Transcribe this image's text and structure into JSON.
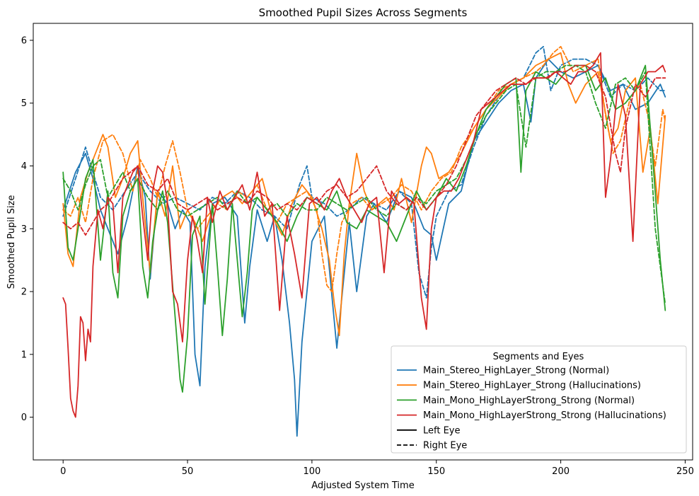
{
  "chart_data": {
    "type": "line",
    "title": "Smoothed Pupil Sizes Across Segments",
    "xlabel": "Adjusted System Time",
    "ylabel": "Smoothed Pupil Size",
    "xlim": [
      -12,
      253
    ],
    "ylim": [
      -0.68,
      6.27
    ],
    "xticks": [
      0,
      50,
      100,
      150,
      200,
      250
    ],
    "yticks": [
      0,
      1,
      2,
      3,
      4,
      5,
      6
    ],
    "grid": false,
    "legend": {
      "title": "Segments and Eyes",
      "placement": "lower-right",
      "entries": [
        {
          "label": "Main_Stereo_HighLayer_Strong (Normal)",
          "color": "#1f77b4",
          "style": "solid"
        },
        {
          "label": "Main_Stereo_HighLayer_Strong (Hallucinations)",
          "color": "#ff7f0e",
          "style": "solid"
        },
        {
          "label": "Main_Mono_HighLayerStrong_Strong (Normal)",
          "color": "#2ca02c",
          "style": "solid"
        },
        {
          "label": "Main_Mono_HighLayerStrong_Strong (Hallucinations)",
          "color": "#d62728",
          "style": "solid"
        },
        {
          "label": "Left Eye",
          "color": "#000000",
          "style": "solid"
        },
        {
          "label": "Right Eye",
          "color": "#000000",
          "style": "dashed"
        }
      ]
    },
    "series": [
      {
        "segment": "Main_Stereo_HighLayer_Strong (Normal)",
        "eye": "Left",
        "color": "#1f77b4",
        "dash": false,
        "x": [
          0,
          5,
          9,
          12,
          15,
          18,
          22,
          26,
          30,
          33,
          35,
          38,
          42,
          45,
          48,
          51,
          53,
          55,
          57,
          60,
          65,
          70,
          73,
          75,
          78,
          82,
          85,
          88,
          91,
          93,
          94,
          96,
          100,
          105,
          110,
          115,
          118,
          122,
          125,
          130,
          135,
          140,
          145,
          148,
          150,
          155,
          160,
          165,
          170,
          175,
          180,
          185,
          188,
          190,
          195,
          200,
          205,
          210,
          215,
          220,
          225,
          230,
          235,
          240,
          242
        ],
        "y": [
          3.3,
          3.9,
          4.2,
          3.8,
          3.3,
          3.0,
          2.6,
          3.2,
          4.0,
          3.5,
          2.2,
          3.6,
          3.4,
          3.0,
          3.3,
          3.1,
          1.0,
          0.5,
          2.4,
          3.4,
          3.5,
          3.2,
          1.5,
          2.4,
          3.3,
          2.8,
          3.2,
          2.5,
          1.5,
          0.6,
          -0.3,
          1.2,
          2.8,
          3.2,
          1.1,
          3.1,
          2.0,
          3.2,
          3.4,
          3.1,
          3.6,
          3.5,
          3.0,
          2.9,
          2.5,
          3.4,
          3.6,
          4.4,
          4.7,
          5.0,
          5.2,
          5.3,
          4.7,
          5.4,
          5.7,
          5.5,
          5.4,
          5.5,
          5.6,
          5.2,
          5.3,
          4.9,
          5.0,
          5.3,
          5.1
        ]
      },
      {
        "segment": "Main_Stereo_HighLayer_Strong (Normal)",
        "eye": "Right",
        "color": "#1f77b4",
        "dash": true,
        "x": [
          0,
          5,
          9,
          12,
          15,
          20,
          25,
          30,
          35,
          40,
          45,
          50,
          55,
          60,
          65,
          70,
          75,
          80,
          85,
          90,
          95,
          98,
          100,
          105,
          110,
          115,
          120,
          125,
          130,
          135,
          140,
          143,
          146,
          148,
          150,
          155,
          160,
          165,
          170,
          175,
          180,
          185,
          190,
          193,
          196,
          200,
          205,
          210,
          215,
          220,
          225,
          230,
          235,
          240,
          242
        ],
        "y": [
          3.2,
          3.8,
          4.3,
          3.9,
          3.5,
          3.3,
          3.6,
          3.9,
          3.6,
          3.4,
          3.5,
          3.4,
          3.3,
          3.5,
          3.4,
          3.6,
          3.5,
          3.3,
          3.2,
          3.0,
          3.7,
          4.0,
          3.5,
          3.4,
          3.2,
          3.3,
          3.5,
          3.4,
          3.3,
          3.6,
          3.4,
          2.3,
          1.9,
          2.7,
          3.2,
          3.6,
          3.7,
          4.3,
          4.8,
          5.1,
          5.3,
          5.4,
          5.8,
          5.9,
          5.2,
          5.6,
          5.7,
          5.7,
          5.6,
          5.1,
          5.3,
          5.2,
          5.4,
          5.2,
          5.2
        ]
      },
      {
        "segment": "Main_Stereo_HighLayer_Strong (Hallucinations)",
        "eye": "Left",
        "color": "#ff7f0e",
        "dash": false,
        "x": [
          0,
          2,
          4,
          7,
          10,
          13,
          16,
          18,
          21,
          24,
          27,
          30,
          32,
          35,
          38,
          41,
          44,
          47,
          50,
          53,
          56,
          60,
          64,
          68,
          72,
          76,
          80,
          84,
          88,
          92,
          96,
          100,
          104,
          107,
          109,
          111,
          113,
          115,
          118,
          121,
          124,
          127,
          130,
          133,
          136,
          140,
          144,
          146,
          148,
          151,
          155,
          160,
          165,
          170,
          175,
          180,
          185,
          190,
          195,
          200,
          203,
          206,
          210,
          215,
          220,
          223,
          226,
          230,
          233,
          236,
          239,
          242
        ],
        "y": [
          3.4,
          2.6,
          2.4,
          3.5,
          3.9,
          4.2,
          4.5,
          4.3,
          3.5,
          3.8,
          4.2,
          4.4,
          3.5,
          2.3,
          3.6,
          3.2,
          4.0,
          3.0,
          3.3,
          3.1,
          2.8,
          3.3,
          3.5,
          3.6,
          3.4,
          3.6,
          3.8,
          3.2,
          2.9,
          3.4,
          3.7,
          3.5,
          3.0,
          2.5,
          1.8,
          1.3,
          2.6,
          3.4,
          4.2,
          3.6,
          3.3,
          3.4,
          3.5,
          3.3,
          3.8,
          3.1,
          4.0,
          4.3,
          4.2,
          3.8,
          3.9,
          4.2,
          4.6,
          4.9,
          5.1,
          5.3,
          5.4,
          5.6,
          5.7,
          5.8,
          5.3,
          5.0,
          5.3,
          5.5,
          4.4,
          4.6,
          5.2,
          5.4,
          3.9,
          4.6,
          3.4,
          4.8
        ]
      },
      {
        "segment": "Main_Stereo_HighLayer_Strong (Hallucinations)",
        "eye": "Right",
        "color": "#ff7f0e",
        "dash": true,
        "x": [
          0,
          3,
          6,
          9,
          12,
          16,
          20,
          24,
          28,
          31,
          35,
          38,
          41,
          44,
          47,
          50,
          54,
          58,
          62,
          66,
          70,
          74,
          78,
          82,
          86,
          90,
          94,
          98,
          102,
          104,
          106,
          108,
          110,
          112,
          116,
          120,
          124,
          128,
          132,
          136,
          140,
          144,
          148,
          152,
          156,
          160,
          165,
          170,
          175,
          180,
          185,
          190,
          193,
          197,
          200,
          205,
          210,
          215,
          218,
          221,
          224,
          228,
          232,
          235,
          238,
          241,
          242
        ],
        "y": [
          3.3,
          3.2,
          3.5,
          3.1,
          3.8,
          4.4,
          4.5,
          4.2,
          3.6,
          4.1,
          3.8,
          3.5,
          4.0,
          4.4,
          3.9,
          3.3,
          3.0,
          3.2,
          3.4,
          3.3,
          3.6,
          3.5,
          3.7,
          3.3,
          3.1,
          3.4,
          3.5,
          3.6,
          3.3,
          2.6,
          2.1,
          2.0,
          2.6,
          3.1,
          3.4,
          3.5,
          3.3,
          3.4,
          3.5,
          3.7,
          3.6,
          3.3,
          3.6,
          3.8,
          3.9,
          4.3,
          4.6,
          4.9,
          5.2,
          5.3,
          5.4,
          5.5,
          5.6,
          5.8,
          5.9,
          5.5,
          5.6,
          5.7,
          4.8,
          4.2,
          4.4,
          5.1,
          5.3,
          4.8,
          4.0,
          4.9,
          4.7
        ]
      },
      {
        "segment": "Main_Mono_HighLayerStrong_Strong (Normal)",
        "eye": "Left",
        "color": "#2ca02c",
        "dash": false,
        "x": [
          0,
          2,
          4,
          6,
          9,
          12,
          15,
          18,
          20,
          22,
          24,
          27,
          30,
          32,
          34,
          36,
          38,
          40,
          42,
          45,
          47,
          48,
          50,
          52,
          55,
          57,
          60,
          62,
          64,
          66,
          68,
          70,
          72,
          74,
          76,
          78,
          82,
          86,
          90,
          94,
          98,
          102,
          106,
          110,
          114,
          118,
          122,
          126,
          130,
          134,
          138,
          142,
          146,
          150,
          154,
          158,
          162,
          166,
          170,
          174,
          178,
          182,
          184,
          186,
          190,
          194,
          198,
          202,
          206,
          210,
          214,
          218,
          222,
          226,
          230,
          234,
          237,
          240,
          242
        ],
        "y": [
          3.9,
          2.7,
          2.5,
          3.0,
          3.8,
          4.1,
          2.5,
          3.6,
          2.3,
          1.9,
          3.2,
          3.6,
          3.8,
          2.4,
          1.9,
          2.8,
          3.3,
          3.6,
          3.1,
          1.6,
          0.6,
          0.4,
          1.3,
          2.9,
          3.2,
          1.8,
          3.4,
          2.4,
          1.3,
          2.2,
          3.4,
          2.5,
          1.6,
          2.3,
          3.3,
          3.5,
          3.3,
          3.1,
          2.8,
          3.2,
          3.5,
          3.4,
          3.3,
          3.6,
          3.1,
          3.0,
          3.3,
          3.2,
          3.1,
          2.8,
          3.2,
          3.6,
          3.3,
          3.5,
          3.8,
          3.6,
          4.0,
          4.5,
          4.9,
          5.1,
          5.3,
          5.4,
          3.9,
          5.2,
          5.5,
          5.4,
          5.3,
          5.5,
          5.6,
          5.6,
          5.2,
          5.4,
          4.9,
          5.0,
          5.2,
          5.6,
          4.1,
          2.5,
          1.7
        ]
      },
      {
        "segment": "Main_Mono_HighLayerStrong_Strong (Normal)",
        "eye": "Right",
        "color": "#2ca02c",
        "dash": true,
        "x": [
          0,
          3,
          6,
          9,
          12,
          15,
          18,
          21,
          24,
          27,
          30,
          34,
          38,
          42,
          46,
          50,
          54,
          58,
          62,
          66,
          70,
          74,
          78,
          82,
          86,
          90,
          94,
          98,
          102,
          106,
          110,
          114,
          118,
          122,
          126,
          130,
          134,
          138,
          142,
          146,
          150,
          154,
          158,
          162,
          166,
          170,
          174,
          178,
          182,
          186,
          190,
          194,
          198,
          202,
          206,
          210,
          214,
          218,
          222,
          226,
          230,
          234,
          238,
          242
        ],
        "y": [
          3.8,
          3.6,
          3.3,
          3.7,
          4.0,
          4.1,
          3.5,
          3.7,
          3.9,
          3.6,
          3.8,
          3.5,
          3.3,
          3.6,
          3.3,
          3.2,
          3.3,
          3.4,
          3.5,
          3.3,
          3.6,
          3.4,
          3.5,
          3.3,
          3.4,
          3.2,
          3.4,
          3.3,
          3.3,
          3.5,
          3.4,
          3.3,
          3.4,
          3.5,
          3.3,
          3.2,
          3.4,
          3.3,
          3.5,
          3.4,
          3.6,
          3.7,
          3.8,
          4.1,
          4.5,
          4.8,
          5.0,
          5.2,
          5.3,
          4.3,
          5.4,
          5.5,
          5.5,
          5.6,
          5.6,
          5.5,
          5.0,
          4.6,
          5.3,
          5.4,
          5.2,
          5.5,
          3.0,
          1.8
        ]
      },
      {
        "segment": "Main_Mono_HighLayerStrong_Strong (Hallucinations)",
        "eye": "Left",
        "color": "#d62728",
        "dash": false,
        "x": [
          0,
          1,
          2,
          3,
          4,
          5,
          6,
          7,
          8,
          9,
          10,
          11,
          12,
          14,
          16,
          18,
          20,
          22,
          24,
          26,
          28,
          30,
          32,
          34,
          36,
          38,
          40,
          42,
          44,
          46,
          48,
          50,
          52,
          54,
          56,
          58,
          60,
          63,
          66,
          69,
          72,
          75,
          78,
          81,
          84,
          87,
          90,
          93,
          96,
          99,
          102,
          105,
          108,
          111,
          114,
          117,
          120,
          123,
          126,
          129,
          132,
          135,
          138,
          141,
          144,
          146,
          148,
          150,
          153,
          156,
          159,
          162,
          165,
          168,
          171,
          174,
          177,
          180,
          183,
          186,
          189,
          192,
          195,
          198,
          201,
          204,
          207,
          210,
          213,
          216,
          218,
          220,
          223,
          226,
          229,
          232,
          235,
          238,
          241,
          242
        ],
        "y": [
          1.9,
          1.8,
          1.1,
          0.3,
          0.1,
          0.0,
          0.5,
          1.6,
          1.5,
          0.9,
          1.4,
          1.2,
          2.4,
          3.3,
          3.0,
          3.5,
          3.4,
          2.3,
          3.5,
          3.7,
          3.9,
          4.0,
          3.2,
          2.5,
          3.6,
          4.0,
          3.9,
          3.4,
          2.0,
          1.8,
          1.2,
          2.5,
          3.2,
          2.8,
          2.3,
          3.5,
          3.1,
          3.6,
          3.3,
          3.5,
          3.7,
          3.3,
          3.9,
          3.2,
          3.4,
          1.7,
          3.2,
          2.6,
          1.9,
          3.4,
          3.5,
          3.3,
          3.6,
          3.8,
          3.5,
          3.3,
          3.1,
          3.4,
          3.5,
          2.3,
          3.6,
          3.4,
          3.5,
          3.4,
          1.9,
          1.4,
          3.0,
          3.5,
          3.6,
          3.6,
          3.8,
          4.1,
          4.4,
          4.9,
          5.0,
          5.1,
          5.2,
          5.3,
          5.3,
          5.3,
          5.4,
          5.4,
          5.4,
          5.5,
          5.4,
          5.3,
          5.5,
          5.5,
          5.6,
          5.8,
          3.5,
          4.1,
          5.3,
          4.8,
          2.8,
          5.3,
          5.5,
          5.5,
          5.6,
          5.5
        ]
      },
      {
        "segment": "Main_Mono_HighLayerStrong_Strong (Hallucinations)",
        "eye": "Right",
        "color": "#d62728",
        "dash": true,
        "x": [
          0,
          3,
          6,
          9,
          12,
          15,
          18,
          21,
          24,
          27,
          30,
          34,
          38,
          42,
          46,
          50,
          54,
          58,
          62,
          66,
          70,
          74,
          78,
          82,
          86,
          90,
          94,
          98,
          102,
          106,
          110,
          114,
          118,
          122,
          126,
          130,
          134,
          138,
          142,
          146,
          150,
          154,
          158,
          162,
          166,
          170,
          174,
          178,
          182,
          186,
          190,
          194,
          198,
          202,
          206,
          210,
          214,
          218,
          222,
          224,
          226,
          230,
          234,
          238,
          242
        ],
        "y": [
          3.1,
          3.0,
          3.1,
          2.9,
          3.1,
          3.3,
          3.4,
          3.6,
          3.8,
          3.9,
          4.0,
          3.7,
          3.6,
          3.8,
          3.4,
          3.3,
          3.4,
          3.5,
          3.3,
          3.4,
          3.5,
          3.4,
          3.6,
          3.5,
          3.3,
          3.4,
          3.3,
          3.5,
          3.4,
          3.6,
          3.7,
          3.5,
          3.6,
          3.8,
          4.0,
          3.6,
          3.4,
          3.3,
          3.5,
          3.3,
          3.5,
          3.7,
          4.0,
          4.4,
          4.8,
          5.0,
          5.2,
          5.3,
          5.4,
          5.3,
          5.4,
          5.4,
          5.5,
          5.5,
          5.6,
          5.6,
          5.5,
          5.1,
          4.2,
          3.9,
          4.6,
          5.3,
          5.1,
          5.4,
          5.4
        ]
      }
    ]
  }
}
